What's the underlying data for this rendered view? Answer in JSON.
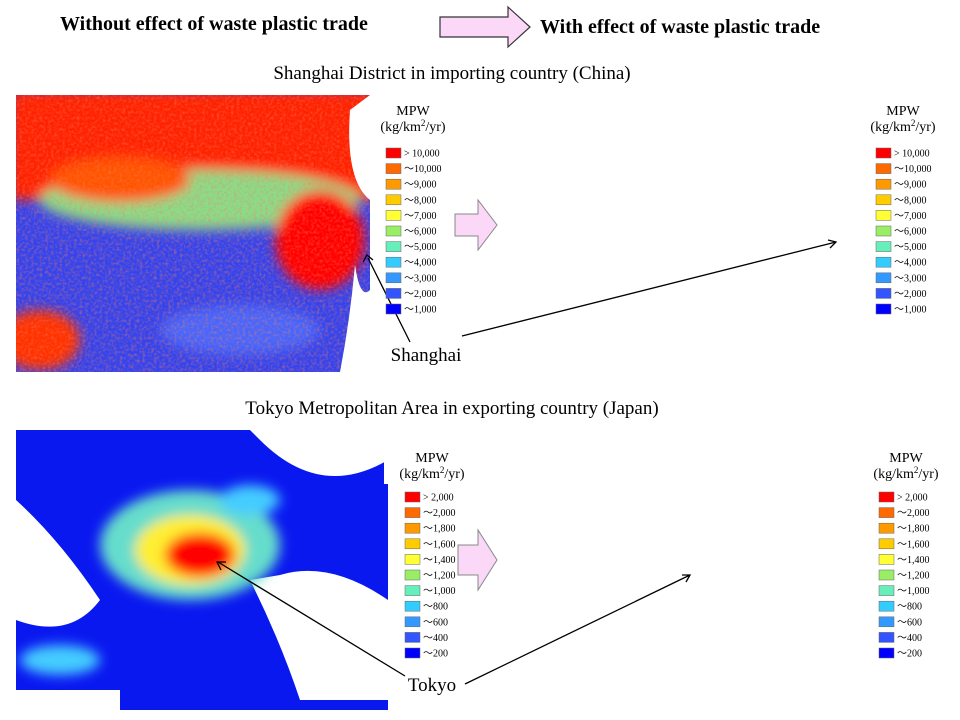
{
  "header": {
    "left": "Without effect of waste plastic trade",
    "right": "With effect of waste plastic trade"
  },
  "sections": [
    {
      "title": "Shanghai District in importing country (China)",
      "place": "Shanghai",
      "legend": {
        "title": "MPW",
        "unit": {
          "prefix": "(kg/km",
          "sup": "2",
          "suffix": "/yr)"
        },
        "items": [
          {
            "label": "> 10,000",
            "color": "#ff0000"
          },
          {
            "label": "～10,000",
            "color": "#ff6a00"
          },
          {
            "label": "～9,000",
            "color": "#ff9900"
          },
          {
            "label": "～8,000",
            "color": "#ffcc00"
          },
          {
            "label": "～7,000",
            "color": "#ffff33"
          },
          {
            "label": "～6,000",
            "color": "#99ee66"
          },
          {
            "label": "～5,000",
            "color": "#66eebb"
          },
          {
            "label": "～4,000",
            "color": "#33ccff"
          },
          {
            "label": "～3,000",
            "color": "#3399ff"
          },
          {
            "label": "～2,000",
            "color": "#3355ff"
          },
          {
            "label": "～1,000",
            "color": "#0000ff"
          }
        ]
      }
    },
    {
      "title": "Tokyo Metropolitan Area in exporting country (Japan)",
      "place": "Tokyo",
      "legend": {
        "title": "MPW",
        "unit": {
          "prefix": "(kg/km",
          "sup": "2",
          "suffix": "/yr)"
        },
        "items": [
          {
            "label": "> 2,000",
            "color": "#ff0000"
          },
          {
            "label": "～2,000",
            "color": "#ff6a00"
          },
          {
            "label": "～1,800",
            "color": "#ff9900"
          },
          {
            "label": "～1,600",
            "color": "#ffcc00"
          },
          {
            "label": "～1,400",
            "color": "#ffff33"
          },
          {
            "label": "～1,200",
            "color": "#99ee66"
          },
          {
            "label": "～1,000",
            "color": "#66eebb"
          },
          {
            "label": "～800",
            "color": "#33ccff"
          },
          {
            "label": "～600",
            "color": "#3399ff"
          },
          {
            "label": "～400",
            "color": "#3355ff"
          },
          {
            "label": "～200",
            "color": "#0000ff"
          }
        ]
      }
    }
  ]
}
